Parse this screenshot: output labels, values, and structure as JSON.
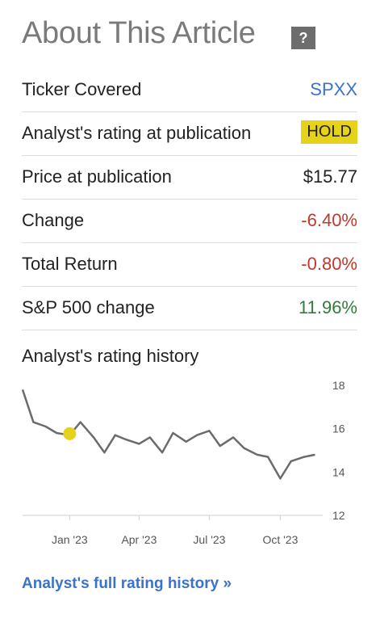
{
  "header": {
    "title": "About This Article",
    "help_label": "?"
  },
  "rows": [
    {
      "label": "Ticker Covered",
      "value": "SPXX"
    },
    {
      "label": "Analyst's rating at publication",
      "value": "HOLD"
    },
    {
      "label": "Price at publication",
      "value": "$15.77"
    },
    {
      "label": "Change",
      "value": "-6.40%"
    },
    {
      "label": "Total Return",
      "value": "-0.80%"
    },
    {
      "label": "S&P 500 change",
      "value": "11.96%"
    }
  ],
  "colors": {
    "link": "#3a73c9",
    "negative": "#c0392b",
    "positive": "#2e7d3e",
    "badge": "#e6d21a",
    "line": "#6b6b6b",
    "marker": "#e6d21a"
  },
  "history": {
    "title": "Analyst's rating history",
    "link": "Analyst's full rating history »"
  },
  "chart_data": {
    "type": "line",
    "title": "",
    "x_tick_labels": [
      "Jan '23",
      "Apr '23",
      "Jul '23",
      "Oct '23"
    ],
    "y_ticks": [
      12,
      14,
      16,
      18
    ],
    "ylim": [
      12,
      18
    ],
    "x": [
      "2022-11-01",
      "2022-11-15",
      "2022-12-01",
      "2022-12-15",
      "2023-01-01",
      "2023-01-15",
      "2023-02-01",
      "2023-02-15",
      "2023-03-01",
      "2023-03-15",
      "2023-04-01",
      "2023-04-15",
      "2023-05-01",
      "2023-05-15",
      "2023-06-01",
      "2023-06-15",
      "2023-07-01",
      "2023-07-15",
      "2023-08-01",
      "2023-08-15",
      "2023-09-01",
      "2023-09-15",
      "2023-10-01",
      "2023-10-15",
      "2023-11-01",
      "2023-11-15"
    ],
    "series": [
      {
        "values": [
          17.8,
          16.3,
          16.1,
          15.8,
          15.7,
          16.3,
          15.6,
          14.9,
          15.7,
          15.5,
          15.3,
          15.6,
          14.9,
          15.8,
          15.4,
          15.7,
          15.9,
          15.2,
          15.6,
          15.1,
          14.8,
          14.7,
          13.7,
          14.5,
          14.7,
          14.8
        ]
      }
    ],
    "rating_marker": {
      "date": "2023-01-01",
      "value": 15.77,
      "rating": "HOLD"
    },
    "grid": false
  }
}
